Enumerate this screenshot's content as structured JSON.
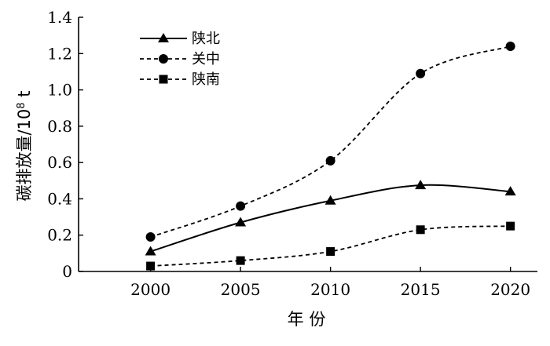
{
  "chart_data": {
    "type": "line",
    "xlabel": "年 份",
    "ylabel_main": "碳排放量/10",
    "ylabel_sup": "8",
    "ylabel_unit": " t",
    "x": [
      2000,
      2005,
      2010,
      2015,
      2020
    ],
    "xticks": [
      "2000",
      "2005",
      "2010",
      "2015",
      "2020"
    ],
    "yticks": [
      "0",
      "0.2",
      "0.4",
      "0.6",
      "0.8",
      "1.0",
      "1.2",
      "1.4"
    ],
    "xlim": [
      1996,
      2021.5
    ],
    "ylim": [
      0,
      1.4
    ],
    "grid": false,
    "legend_position": "top-left",
    "series": [
      {
        "name": "陕北",
        "values": [
          0.11,
          0.27,
          0.39,
          0.475,
          0.44
        ],
        "marker": "triangle",
        "line": "solid",
        "color": "#000000"
      },
      {
        "name": "关中",
        "values": [
          0.19,
          0.36,
          0.61,
          1.09,
          1.24
        ],
        "marker": "circle",
        "line": "dashed",
        "color": "#000000"
      },
      {
        "name": "陕南",
        "values": [
          0.03,
          0.06,
          0.11,
          0.23,
          0.25
        ],
        "marker": "square",
        "line": "dashed",
        "color": "#000000"
      }
    ]
  }
}
